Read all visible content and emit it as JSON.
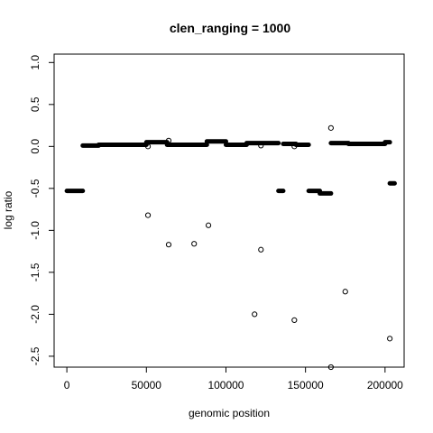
{
  "chart_data": {
    "type": "scatter",
    "title": "clen_ranging =  1000",
    "xlabel": "genomic position",
    "ylabel": "log ratio",
    "xlim": [
      -8000,
      212000
    ],
    "ylim": [
      -2.63,
      1.1
    ],
    "xticks": [
      0,
      50000,
      100000,
      150000,
      200000
    ],
    "xtick_labels": [
      "0",
      "50000",
      "100000",
      "150000",
      "200000"
    ],
    "yticks": [
      1.0,
      0.5,
      0.0,
      -0.5,
      -1.0,
      -1.5,
      -2.0,
      -2.5
    ],
    "ytick_labels": [
      "1.0",
      "0.5",
      "0.0",
      "-0.5",
      "-1.0",
      "-1.5",
      "-2.0",
      "-2.5"
    ],
    "grid": false,
    "segments": [
      {
        "x_start": 0,
        "x_end": 10000,
        "y": -0.53
      },
      {
        "x_start": 10000,
        "x_end": 20000,
        "y": 0.01
      },
      {
        "x_start": 20000,
        "x_end": 50000,
        "y": 0.02
      },
      {
        "x_start": 50000,
        "x_end": 63000,
        "y": 0.05
      },
      {
        "x_start": 63000,
        "x_end": 88000,
        "y": 0.02
      },
      {
        "x_start": 88000,
        "x_end": 100000,
        "y": 0.06
      },
      {
        "x_start": 100000,
        "x_end": 113000,
        "y": 0.02
      },
      {
        "x_start": 113000,
        "x_end": 133000,
        "y": 0.04
      },
      {
        "x_start": 133000,
        "x_end": 136000,
        "y": -0.53
      },
      {
        "x_start": 136000,
        "x_end": 144000,
        "y": 0.03
      },
      {
        "x_start": 144000,
        "x_end": 152000,
        "y": 0.02
      },
      {
        "x_start": 152000,
        "x_end": 159000,
        "y": -0.53
      },
      {
        "x_start": 159000,
        "x_end": 166000,
        "y": -0.56
      },
      {
        "x_start": 166000,
        "x_end": 177000,
        "y": 0.04
      },
      {
        "x_start": 177000,
        "x_end": 200000,
        "y": 0.03
      },
      {
        "x_start": 200000,
        "x_end": 203000,
        "y": 0.05
      },
      {
        "x_start": 203000,
        "x_end": 206000,
        "y": -0.44
      }
    ],
    "outliers": [
      {
        "x": 51000,
        "y": -0.82
      },
      {
        "x": 51000,
        "y": 0.0
      },
      {
        "x": 64000,
        "y": -1.17
      },
      {
        "x": 64000,
        "y": 0.07
      },
      {
        "x": 80000,
        "y": -1.16
      },
      {
        "x": 89000,
        "y": -0.94
      },
      {
        "x": 118000,
        "y": -2.0
      },
      {
        "x": 122000,
        "y": -1.23
      },
      {
        "x": 122000,
        "y": 0.01
      },
      {
        "x": 143000,
        "y": -2.07
      },
      {
        "x": 143000,
        "y": 0.0
      },
      {
        "x": 166000,
        "y": 0.22
      },
      {
        "x": 166000,
        "y": -2.63
      },
      {
        "x": 175000,
        "y": -1.73
      },
      {
        "x": 203000,
        "y": -2.29
      }
    ]
  }
}
